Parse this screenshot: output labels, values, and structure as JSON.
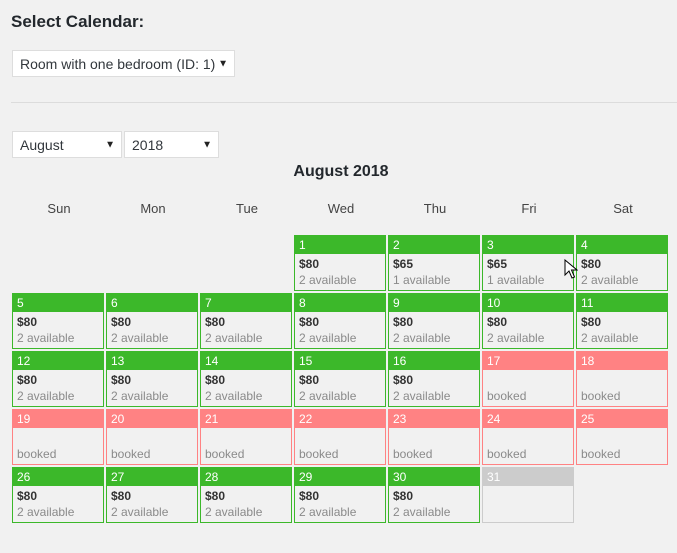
{
  "header": {
    "title": "Select Calendar:"
  },
  "calendar_select": {
    "value": "Room with one bedroom (ID: 1)"
  },
  "month_select": {
    "value": "August"
  },
  "year_select": {
    "value": "2018"
  },
  "calendar": {
    "heading": "August 2018",
    "weekdays": [
      "Sun",
      "Mon",
      "Tue",
      "Wed",
      "Thu",
      "Fri",
      "Sat"
    ],
    "leading_empty": 3,
    "days": [
      {
        "day": "1",
        "state": "available",
        "price": "$80",
        "status": "2 available"
      },
      {
        "day": "2",
        "state": "available",
        "price": "$65",
        "status": "1 available"
      },
      {
        "day": "3",
        "state": "available",
        "price": "$65",
        "status": "1 available"
      },
      {
        "day": "4",
        "state": "available",
        "price": "$80",
        "status": "2 available"
      },
      {
        "day": "5",
        "state": "available",
        "price": "$80",
        "status": "2 available"
      },
      {
        "day": "6",
        "state": "available",
        "price": "$80",
        "status": "2 available"
      },
      {
        "day": "7",
        "state": "available",
        "price": "$80",
        "status": "2 available"
      },
      {
        "day": "8",
        "state": "available",
        "price": "$80",
        "status": "2 available"
      },
      {
        "day": "9",
        "state": "available",
        "price": "$80",
        "status": "2 available"
      },
      {
        "day": "10",
        "state": "available",
        "price": "$80",
        "status": "2 available"
      },
      {
        "day": "11",
        "state": "available",
        "price": "$80",
        "status": "2 available"
      },
      {
        "day": "12",
        "state": "available",
        "price": "$80",
        "status": "2 available"
      },
      {
        "day": "13",
        "state": "available",
        "price": "$80",
        "status": "2 available"
      },
      {
        "day": "14",
        "state": "available",
        "price": "$80",
        "status": "2 available"
      },
      {
        "day": "15",
        "state": "available",
        "price": "$80",
        "status": "2 available"
      },
      {
        "day": "16",
        "state": "available",
        "price": "$80",
        "status": "2 available"
      },
      {
        "day": "17",
        "state": "booked",
        "price": "",
        "status": "booked"
      },
      {
        "day": "18",
        "state": "booked",
        "price": "",
        "status": "booked"
      },
      {
        "day": "19",
        "state": "booked",
        "price": "",
        "status": "booked"
      },
      {
        "day": "20",
        "state": "booked",
        "price": "",
        "status": "booked"
      },
      {
        "day": "21",
        "state": "booked",
        "price": "",
        "status": "booked"
      },
      {
        "day": "22",
        "state": "booked",
        "price": "",
        "status": "booked"
      },
      {
        "day": "23",
        "state": "booked",
        "price": "",
        "status": "booked"
      },
      {
        "day": "24",
        "state": "booked",
        "price": "",
        "status": "booked"
      },
      {
        "day": "25",
        "state": "booked",
        "price": "",
        "status": "booked"
      },
      {
        "day": "26",
        "state": "available",
        "price": "$80",
        "status": "2 available"
      },
      {
        "day": "27",
        "state": "available",
        "price": "$80",
        "status": "2 available"
      },
      {
        "day": "28",
        "state": "available",
        "price": "$80",
        "status": "2 available"
      },
      {
        "day": "29",
        "state": "available",
        "price": "$80",
        "status": "2 available"
      },
      {
        "day": "30",
        "state": "available",
        "price": "$80",
        "status": "2 available"
      },
      {
        "day": "31",
        "state": "disabled",
        "price": "",
        "status": ""
      }
    ]
  },
  "colors": {
    "available": "#3cb82a",
    "booked": "#ff8283",
    "disabled": "#cccccc",
    "background": "#f1f1f1"
  },
  "icons": {
    "dropdown": "caret-down-icon",
    "pointer": "mouse-cursor-icon"
  }
}
